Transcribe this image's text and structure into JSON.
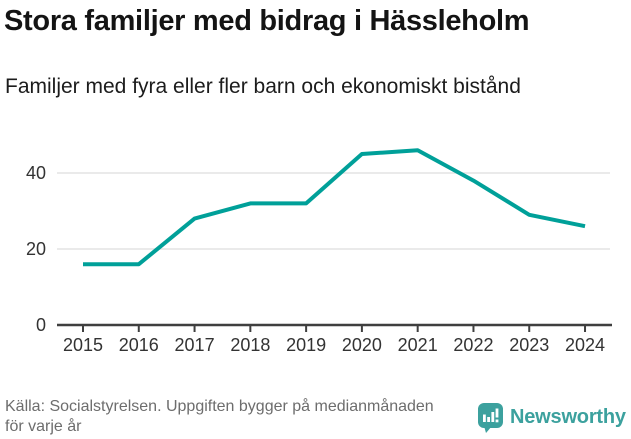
{
  "header": {
    "title": "Stora familjer med bidrag i Hässleholm",
    "subtitle": "Familjer med fyra eller fler barn och ekonomiskt bistånd"
  },
  "footer": {
    "source_line1": "Källa: Socialstyrelsen. Uppgiften bygger på medianmånaden",
    "source_line2": "för varje år",
    "brand": "Newsworthy"
  },
  "colors": {
    "line": "#00a099",
    "brand_teal": "#3ca19e",
    "grid": "#e4e4e4",
    "axis": "#3f3f3f",
    "tick_text": "#333333",
    "muted_text": "#6d6d6d"
  },
  "chart_data": {
    "type": "line",
    "title": "Stora familjer med bidrag i Hässleholm",
    "subtitle": "Familjer med fyra eller fler barn och ekonomiskt bistånd",
    "x": [
      2015,
      2016,
      2017,
      2018,
      2019,
      2020,
      2021,
      2022,
      2023,
      2024
    ],
    "values": [
      16,
      16,
      28,
      32,
      32,
      45,
      46,
      38,
      29,
      26
    ],
    "series_name": "Familjer med fyra eller fler barn och ekonomiskt bistånd",
    "xlabel": "",
    "ylabel": "",
    "yticks": [
      0,
      20,
      40
    ],
    "ylim": [
      0,
      50
    ],
    "grid": "horizontal",
    "legend": "none",
    "line_color": "#00a099"
  }
}
